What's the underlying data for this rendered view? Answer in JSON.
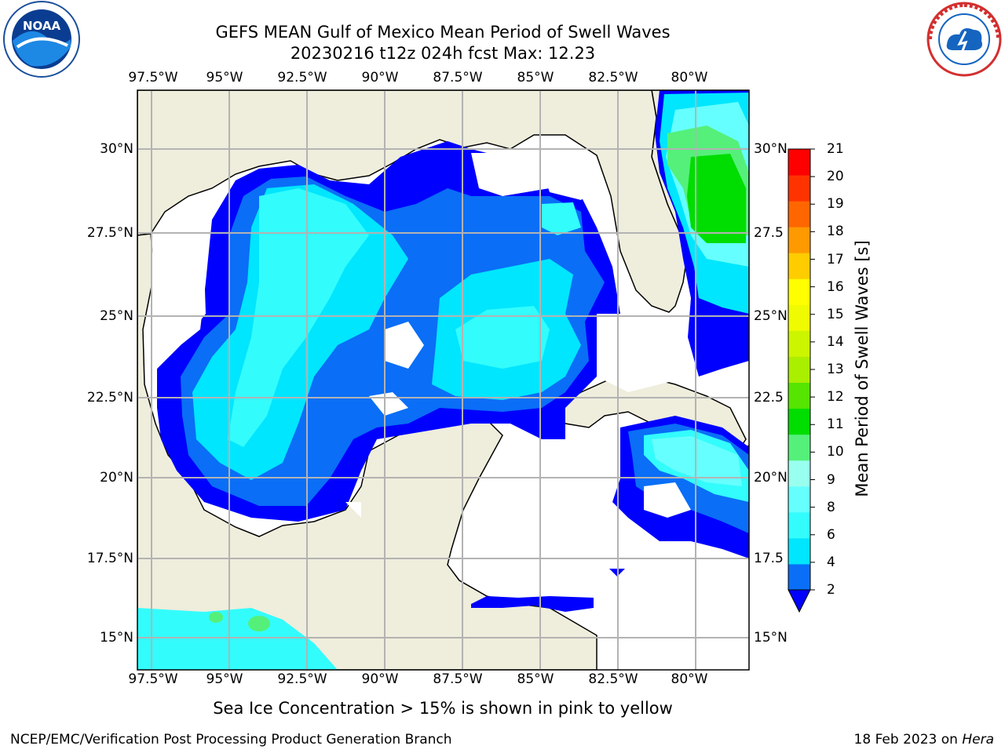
{
  "title_line1": "GEFS MEAN Gulf of Mexico Mean Period of Swell Waves",
  "title_line2": "20230216 t12z 024h fcst   Max: 12.23",
  "lon_ticks": [
    "97.5°W",
    "95°W",
    "92.5°W",
    "90°W",
    "87.5°W",
    "85°W",
    "82.5°W",
    "80°W"
  ],
  "lat_ticks_left": [
    "30°N",
    "27.5°N",
    "25°N",
    "22.5°N",
    "20°N",
    "17.5°N",
    "15°N"
  ],
  "lat_ticks_right": [
    "30°N",
    "27.5",
    "25°N",
    "22.5",
    "20°N",
    "17.5",
    "15°N"
  ],
  "colorbar": {
    "label": "Mean Period of Swell Waves [s]",
    "ticks": [
      "2",
      "4",
      "6",
      "8",
      "9",
      "10",
      "11",
      "12",
      "13",
      "14",
      "15",
      "16",
      "17",
      "18",
      "19",
      "20",
      "21"
    ],
    "colors": [
      "#0a6ef7",
      "#00e6ff",
      "#33fcfc",
      "#66ffff",
      "#99ffee",
      "#55f07a",
      "#00dd00",
      "#55e500",
      "#aaee00",
      "#ccf500",
      "#f0fa00",
      "#ffff00",
      "#ffcc00",
      "#ff9900",
      "#ff6600",
      "#ff3300",
      "#ff0000"
    ],
    "under_color": "#0000ff"
  },
  "note": "Sea Ice Concentration > 15% is shown in pink to yellow",
  "footer_left": "NCEP/EMC/Verification Post Processing Product Generation Branch",
  "footer_right_prefix": "18 Feb 2023 on ",
  "footer_right_host": "Hera",
  "logo_left": {
    "icon": "noaa-logo",
    "text": "NOAA"
  },
  "logo_right": {
    "icon": "nws-logo"
  }
}
